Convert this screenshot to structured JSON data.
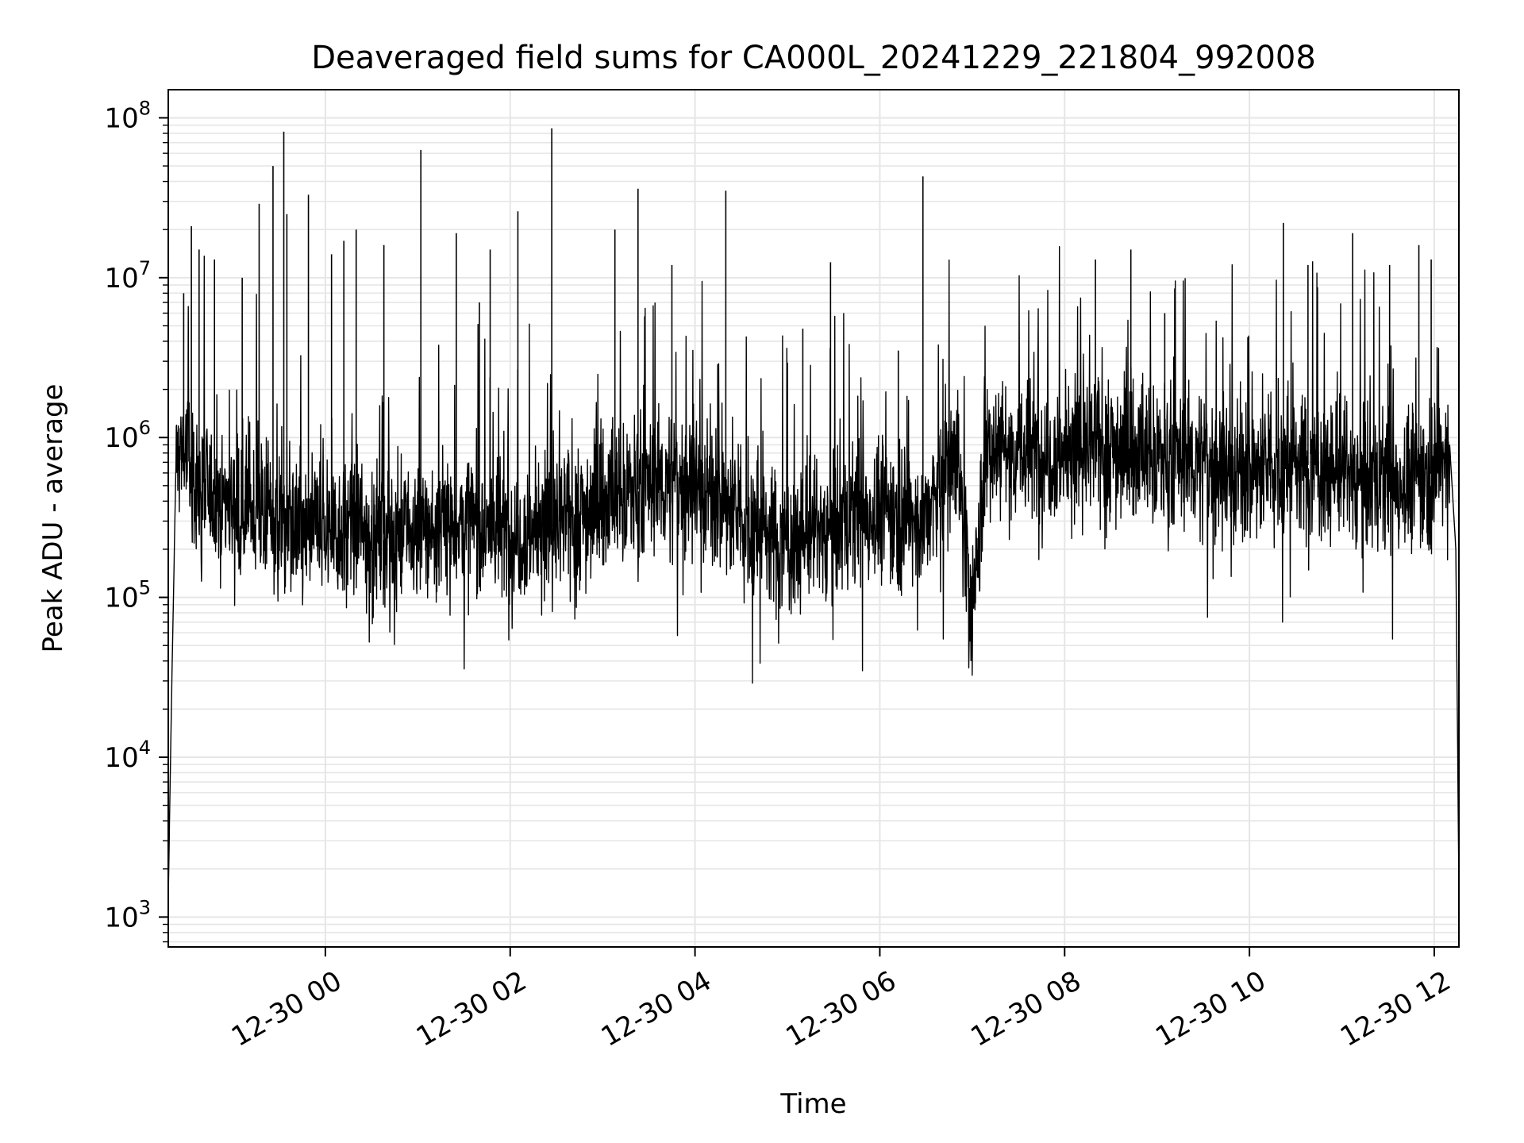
{
  "chart_data": {
    "type": "line",
    "title": "Deaveraged field sums for CA000L_20241229_221804_992008",
    "xlabel": "Time",
    "ylabel": "Peak ADU - average",
    "yscale": "log",
    "xlim": [
      "2024-12-29 22:18",
      "2024-12-30 12:16"
    ],
    "ylim": [
      650,
      150000000
    ],
    "grid": true,
    "line_color": "#000000",
    "grid_color": "#e6e6e6",
    "x_ticks": [
      {
        "value": "2024-12-30 00:00",
        "label": "12-30 00"
      },
      {
        "value": "2024-12-30 02:00",
        "label": "12-30 02"
      },
      {
        "value": "2024-12-30 04:00",
        "label": "12-30 04"
      },
      {
        "value": "2024-12-30 06:00",
        "label": "12-30 06"
      },
      {
        "value": "2024-12-30 08:00",
        "label": "12-30 08"
      },
      {
        "value": "2024-12-30 10:00",
        "label": "12-30 10"
      },
      {
        "value": "2024-12-30 12:00",
        "label": "12-30 12"
      }
    ],
    "y_ticks": [
      {
        "value": 1000,
        "base": "10",
        "exp": "3"
      },
      {
        "value": 10000,
        "base": "10",
        "exp": "4"
      },
      {
        "value": 100000,
        "base": "10",
        "exp": "5"
      },
      {
        "value": 1000000,
        "base": "10",
        "exp": "6"
      },
      {
        "value": 10000000,
        "base": "10",
        "exp": "7"
      },
      {
        "value": 100000000,
        "base": "10",
        "exp": "8"
      }
    ],
    "series": [
      {
        "values_note_omitted": false,
        "x": [
          "2024-12-29 22:18",
          "2024-12-29 22:20",
          "2024-12-29 22:23",
          "2024-12-29 22:28",
          "2024-12-29 22:35",
          "2024-12-29 22:45",
          "2024-12-29 23:00",
          "2024-12-29 23:15",
          "2024-12-29 23:30",
          "2024-12-29 23:45",
          "2024-12-30 00:00",
          "2024-12-30 00:30",
          "2024-12-30 01:00",
          "2024-12-30 01:30",
          "2024-12-30 02:00",
          "2024-12-30 02:30",
          "2024-12-30 03:00",
          "2024-12-30 03:30",
          "2024-12-30 04:00",
          "2024-12-30 04:30",
          "2024-12-30 05:00",
          "2024-12-30 05:30",
          "2024-12-30 06:00",
          "2024-12-30 06:30",
          "2024-12-30 06:50",
          "2024-12-30 07:00",
          "2024-12-30 07:10",
          "2024-12-30 07:30",
          "2024-12-30 08:00",
          "2024-12-30 08:30",
          "2024-12-30 09:00",
          "2024-12-30 09:30",
          "2024-12-30 10:00",
          "2024-12-30 10:30",
          "2024-12-30 11:00",
          "2024-12-30 11:30",
          "2024-12-30 12:00",
          "2024-12-30 12:10",
          "2024-12-30 12:14",
          "2024-12-30 12:16"
        ],
        "values": [
          1300,
          20000,
          700000,
          900000,
          500000,
          450000,
          400000,
          350000,
          300000,
          250000,
          280000,
          250000,
          250000,
          300000,
          250000,
          280000,
          400000,
          500000,
          550000,
          300000,
          220000,
          280000,
          350000,
          300000,
          900000,
          70000,
          1000000,
          800000,
          800000,
          900000,
          750000,
          700000,
          600000,
          700000,
          600000,
          500000,
          600000,
          900000,
          200000,
          1500
        ]
      }
    ],
    "spikes": [
      {
        "x": "2024-12-29 22:28",
        "y": 8000000
      },
      {
        "x": "2024-12-29 22:33",
        "y": 21000000
      },
      {
        "x": "2024-12-29 22:38",
        "y": 15000000
      },
      {
        "x": "2024-12-29 22:48",
        "y": 13000000
      },
      {
        "x": "2024-12-29 23:06",
        "y": 10000000
      },
      {
        "x": "2024-12-29 23:17",
        "y": 29000000
      },
      {
        "x": "2024-12-29 23:26",
        "y": 50000000
      },
      {
        "x": "2024-12-29 23:33",
        "y": 82000000
      },
      {
        "x": "2024-12-29 23:35",
        "y": 25000000
      },
      {
        "x": "2024-12-29 23:49",
        "y": 33000000
      },
      {
        "x": "2024-12-30 00:04",
        "y": 14000000
      },
      {
        "x": "2024-12-30 00:12",
        "y": 17000000
      },
      {
        "x": "2024-12-30 00:20",
        "y": 20000000
      },
      {
        "x": "2024-12-30 00:38",
        "y": 16000000
      },
      {
        "x": "2024-12-30 01:02",
        "y": 63000000
      },
      {
        "x": "2024-12-30 01:25",
        "y": 19000000
      },
      {
        "x": "2024-12-30 01:40",
        "y": 7000000
      },
      {
        "x": "2024-12-30 01:47",
        "y": 15000000
      },
      {
        "x": "2024-12-30 02:05",
        "y": 26000000
      },
      {
        "x": "2024-12-30 02:27",
        "y": 86000000
      },
      {
        "x": "2024-12-30 03:08",
        "y": 20000000
      },
      {
        "x": "2024-12-30 03:23",
        "y": 36000000
      },
      {
        "x": "2024-12-30 03:45",
        "y": 12000000
      },
      {
        "x": "2024-12-30 04:20",
        "y": 35000000
      },
      {
        "x": "2024-12-30 05:10",
        "y": 4800000
      },
      {
        "x": "2024-12-30 05:28",
        "y": 12500000
      },
      {
        "x": "2024-12-30 06:12",
        "y": 3500000
      },
      {
        "x": "2024-12-30 06:28",
        "y": 43000000
      },
      {
        "x": "2024-12-30 08:20",
        "y": 13000000
      },
      {
        "x": "2024-12-30 08:43",
        "y": 15000000
      },
      {
        "x": "2024-12-30 09:05",
        "y": 6000000
      },
      {
        "x": "2024-12-30 10:22",
        "y": 22000000
      },
      {
        "x": "2024-12-30 10:38",
        "y": 12000000
      },
      {
        "x": "2024-12-30 11:07",
        "y": 19000000
      },
      {
        "x": "2024-12-30 11:31",
        "y": 12000000
      },
      {
        "x": "2024-12-30 11:50",
        "y": 16000000
      },
      {
        "x": "2024-12-30 11:58",
        "y": 13000000
      }
    ]
  }
}
